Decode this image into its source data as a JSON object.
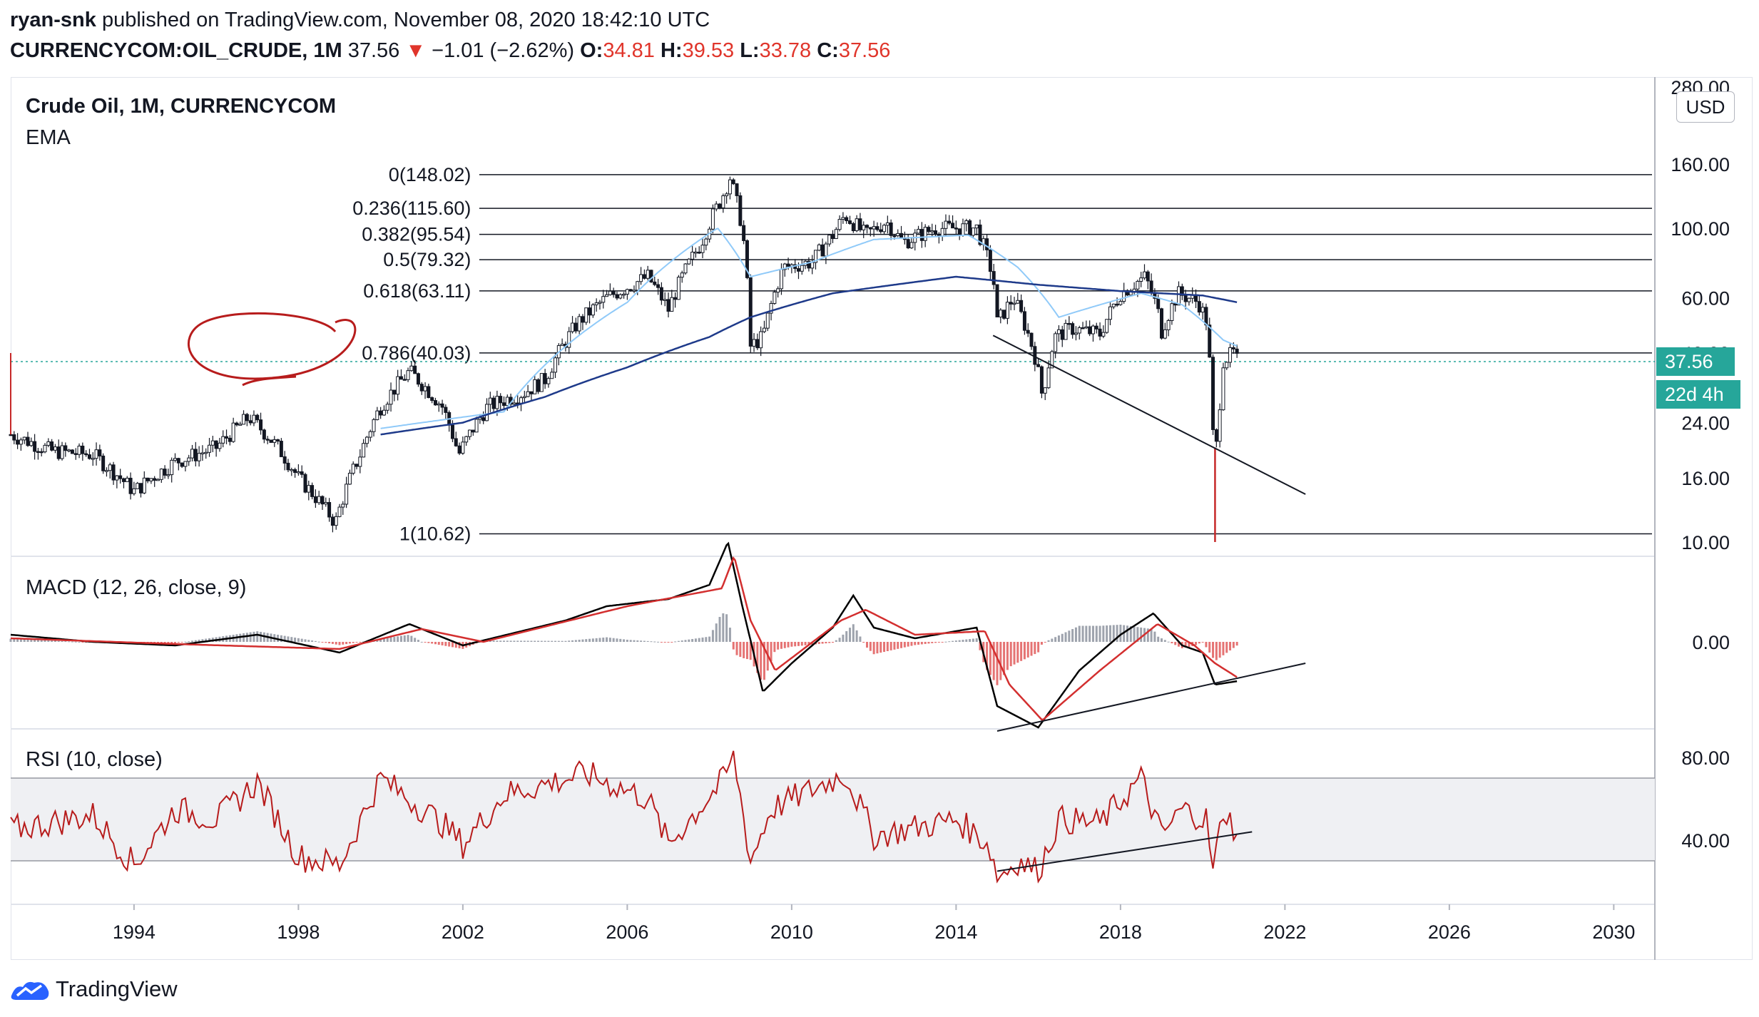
{
  "header": {
    "author": "ryan-snk",
    "published_text": "published on TradingView.com, November 08, 2020 18:42:10 UTC",
    "symbol": "CURRENCYCOM:OIL_CRUDE, 1M",
    "last": "37.56",
    "change_arrow": "▼",
    "change": "−1.01 (−2.62%)",
    "o_label": "O:",
    "o_value": "34.81",
    "h_label": "H:",
    "h_value": "39.53",
    "l_label": "L:",
    "l_value": "33.78",
    "c_label": "C:",
    "c_value": "37.56"
  },
  "legend": {
    "title": "Crude Oil, 1M, CURRENCYCOM",
    "ema": "EMA",
    "macd": "MACD (12, 26, close, 9)",
    "rsi": "RSI (10, close)"
  },
  "price_scale": {
    "currency": "USD",
    "last_price_tag": "37.56",
    "countdown_tag": "22d 4h",
    "colors": {
      "tag": "#26a69a",
      "up": "#131722",
      "down": "#131722",
      "ema_fast": "#90caf9",
      "ema_slow": "#1e3a8a",
      "macd": "#000000",
      "signal": "#d32f2f",
      "rsi": "#b71c1c",
      "annotation": "#b71c1c"
    }
  },
  "footer": {
    "brand": "TradingView",
    "logo_icon": "tradingview-logo-icon"
  },
  "chart_data": [
    {
      "type": "candlestick",
      "title": "Crude Oil, 1M, CURRENCYCOM",
      "scale": "log",
      "ylim": [
        10,
        280
      ],
      "y_ticks": [
        "280.00",
        "160.00",
        "100.00",
        "60.00",
        "40.00",
        "24.00",
        "16.00",
        "10.00"
      ],
      "x_ticks": [
        "1994",
        "1998",
        "2002",
        "2006",
        "2010",
        "2014",
        "2018",
        "2022",
        "2026",
        "2030"
      ],
      "x_range": [
        1991.0,
        2031.0
      ],
      "anchors": [
        [
          1991.0,
          22
        ],
        [
          1992.0,
          19.5
        ],
        [
          1993.0,
          19
        ],
        [
          1994.0,
          14.5
        ],
        [
          1995.0,
          18
        ],
        [
          1996.0,
          20
        ],
        [
          1996.8,
          25
        ],
        [
          1997.5,
          20
        ],
        [
          1998.0,
          16
        ],
        [
          1998.9,
          11.5
        ],
        [
          1999.5,
          19
        ],
        [
          2000.0,
          27
        ],
        [
          2000.7,
          35
        ],
        [
          2001.5,
          27
        ],
        [
          2001.9,
          19
        ],
        [
          2002.6,
          27
        ],
        [
          2003.5,
          30
        ],
        [
          2004.0,
          33
        ],
        [
          2004.8,
          50
        ],
        [
          2005.5,
          60
        ],
        [
          2006.5,
          70
        ],
        [
          2007.0,
          55
        ],
        [
          2007.8,
          90
        ],
        [
          2008.3,
          125
        ],
        [
          2008.5,
          145
        ],
        [
          2008.8,
          100
        ],
        [
          2009.0,
          42
        ],
        [
          2009.3,
          45
        ],
        [
          2009.8,
          75
        ],
        [
          2010.5,
          78
        ],
        [
          2011.0,
          95
        ],
        [
          2011.3,
          110
        ],
        [
          2011.8,
          95
        ],
        [
          2012.3,
          105
        ],
        [
          2012.7,
          90
        ],
        [
          2013.5,
          100
        ],
        [
          2014.0,
          100
        ],
        [
          2014.5,
          100
        ],
        [
          2014.9,
          70
        ],
        [
          2015.0,
          50
        ],
        [
          2015.4,
          60
        ],
        [
          2015.9,
          40
        ],
        [
          2016.1,
          29
        ],
        [
          2016.4,
          45
        ],
        [
          2016.8,
          48
        ],
        [
          2017.5,
          46
        ],
        [
          2018.0,
          62
        ],
        [
          2018.6,
          70
        ],
        [
          2018.9,
          55
        ],
        [
          2019.0,
          47
        ],
        [
          2019.4,
          62
        ],
        [
          2019.9,
          58
        ],
        [
          2020.1,
          50
        ],
        [
          2020.25,
          22
        ],
        [
          2020.35,
          20
        ],
        [
          2020.5,
          38
        ],
        [
          2020.75,
          40
        ],
        [
          2020.85,
          37.56
        ]
      ],
      "ema_fast_anchors": [
        [
          2000.0,
          23
        ],
        [
          2003.0,
          26
        ],
        [
          2006.0,
          58
        ],
        [
          2008.2,
          100
        ],
        [
          2009.0,
          70
        ],
        [
          2010.5,
          78
        ],
        [
          2012.0,
          92
        ],
        [
          2014.3,
          95
        ],
        [
          2015.5,
          75
        ],
        [
          2016.5,
          52
        ],
        [
          2018.5,
          62
        ],
        [
          2019.5,
          57
        ],
        [
          2020.5,
          44
        ],
        [
          2020.85,
          42
        ]
      ],
      "ema_slow_anchors": [
        [
          2000.0,
          22
        ],
        [
          2002.0,
          24
        ],
        [
          2004.0,
          29
        ],
        [
          2006.0,
          36
        ],
        [
          2008.0,
          45
        ],
        [
          2009.0,
          52
        ],
        [
          2011.0,
          62
        ],
        [
          2014.0,
          70
        ],
        [
          2016.0,
          66
        ],
        [
          2018.0,
          63
        ],
        [
          2020.0,
          61
        ],
        [
          2020.85,
          58
        ]
      ],
      "fibonacci": [
        {
          "label": "0(148.02)",
          "price": 148.02
        },
        {
          "label": "0.236(115.60)",
          "price": 115.6
        },
        {
          "label": "0.382(95.54)",
          "price": 95.54
        },
        {
          "label": "0.5(79.32)",
          "price": 79.32
        },
        {
          "label": "0.618(63.11)",
          "price": 63.11
        },
        {
          "label": "0.786(40.03)",
          "price": 40.03
        },
        {
          "label": "1(10.62)",
          "price": 10.62
        }
      ],
      "last_price": 37.56,
      "trendline": {
        "from": [
          2014.9,
          45.5
        ],
        "to": [
          2022.5,
          14.2
        ]
      }
    },
    {
      "type": "line",
      "title": "MACD (12, 26, close, 9)",
      "y_ticks": [
        "0.00"
      ],
      "macd_anchors": [
        [
          1991.0,
          1
        ],
        [
          1993.0,
          0
        ],
        [
          1995.0,
          -0.5
        ],
        [
          1997.0,
          1
        ],
        [
          1999.0,
          -1.5
        ],
        [
          2000.7,
          2.5
        ],
        [
          2002.0,
          -0.5
        ],
        [
          2004.5,
          3
        ],
        [
          2005.5,
          5
        ],
        [
          2007.0,
          6
        ],
        [
          2008.0,
          8
        ],
        [
          2008.45,
          14
        ],
        [
          2008.8,
          5
        ],
        [
          2009.3,
          -7
        ],
        [
          2010.0,
          -3
        ],
        [
          2011.0,
          2
        ],
        [
          2011.5,
          6.5
        ],
        [
          2012.0,
          2
        ],
        [
          2013.0,
          0.5
        ],
        [
          2014.5,
          2
        ],
        [
          2015.0,
          -9
        ],
        [
          2016.0,
          -12
        ],
        [
          2017.0,
          -4
        ],
        [
          2018.0,
          1
        ],
        [
          2018.8,
          4
        ],
        [
          2019.5,
          -0.5
        ],
        [
          2020.0,
          -1.5
        ],
        [
          2020.3,
          -6
        ],
        [
          2020.85,
          -5.5
        ]
      ],
      "signal_anchors": [
        [
          1991.0,
          0.5
        ],
        [
          1995.0,
          -0.3
        ],
        [
          1999.0,
          -1
        ],
        [
          2001.0,
          1.8
        ],
        [
          2002.5,
          0
        ],
        [
          2006.0,
          5
        ],
        [
          2008.3,
          7.5
        ],
        [
          2008.6,
          12
        ],
        [
          2009.0,
          3
        ],
        [
          2009.6,
          -4
        ],
        [
          2011.2,
          3
        ],
        [
          2011.8,
          4.5
        ],
        [
          2013.0,
          1
        ],
        [
          2014.7,
          1.5
        ],
        [
          2015.3,
          -6
        ],
        [
          2016.1,
          -11
        ],
        [
          2017.5,
          -4
        ],
        [
          2018.9,
          2.5
        ],
        [
          2019.8,
          -0.5
        ],
        [
          2020.3,
          -3
        ],
        [
          2020.85,
          -5
        ]
      ],
      "trendline": {
        "from": [
          2015.0,
          -12.5
        ],
        "to": [
          2022.5,
          -3
        ]
      }
    },
    {
      "type": "line",
      "title": "RSI (10, close)",
      "ylim": [
        18,
        86
      ],
      "y_ticks": [
        "80.00",
        "40.00"
      ],
      "band": [
        30,
        70
      ],
      "rsi_anchors": [
        [
          1991.0,
          45
        ],
        [
          1993.0,
          52
        ],
        [
          1994.0,
          28
        ],
        [
          1995.0,
          55
        ],
        [
          1996.0,
          50
        ],
        [
          1997.0,
          68
        ],
        [
          1998.0,
          32
        ],
        [
          1999.0,
          28
        ],
        [
          2000.0,
          70
        ],
        [
          2001.5,
          48
        ],
        [
          2002.0,
          38
        ],
        [
          2003.0,
          62
        ],
        [
          2005.0,
          72
        ],
        [
          2006.5,
          60
        ],
        [
          2007.0,
          38
        ],
        [
          2008.3,
          68
        ],
        [
          2008.6,
          80
        ],
        [
          2009.0,
          30
        ],
        [
          2009.5,
          55
        ],
        [
          2011.3,
          72
        ],
        [
          2012.0,
          42
        ],
        [
          2014.0,
          50
        ],
        [
          2014.8,
          38
        ],
        [
          2015.0,
          22
        ],
        [
          2015.5,
          30
        ],
        [
          2016.0,
          25
        ],
        [
          2016.5,
          50
        ],
        [
          2017.5,
          48
        ],
        [
          2018.5,
          70
        ],
        [
          2019.0,
          42
        ],
        [
          2019.5,
          55
        ],
        [
          2020.1,
          50
        ],
        [
          2020.25,
          24
        ],
        [
          2020.5,
          55
        ],
        [
          2020.85,
          43
        ]
      ],
      "trendline": {
        "from": [
          2015.0,
          25
        ],
        "to": [
          2021.2,
          44
        ]
      }
    }
  ]
}
